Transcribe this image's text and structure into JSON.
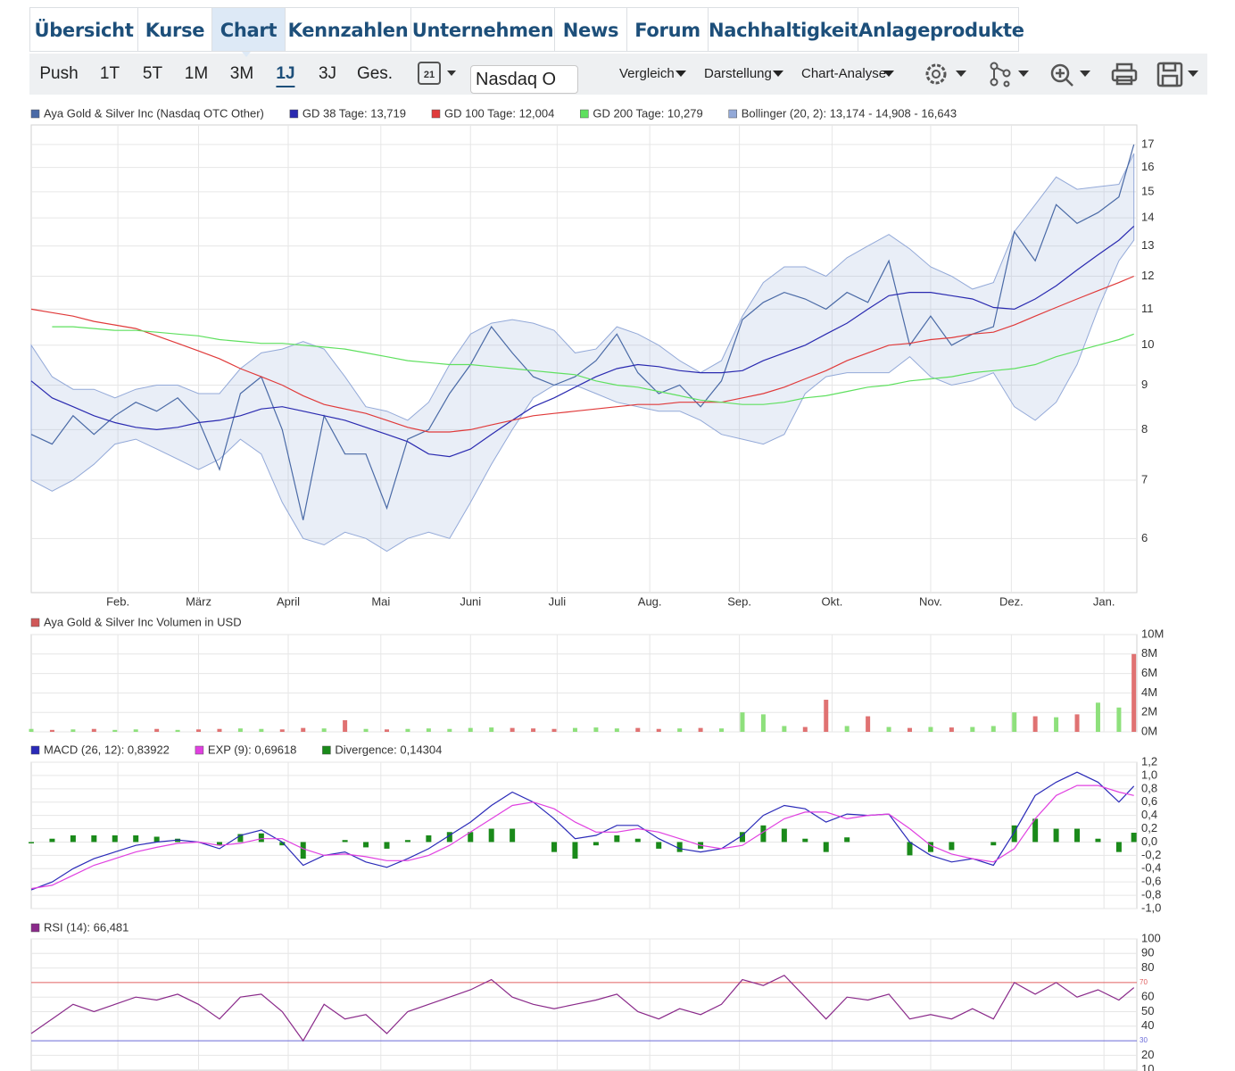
{
  "tabs": [
    "Übersicht",
    "Kurse",
    "Chart",
    "Kennzahlen",
    "Unternehmen",
    "News",
    "Forum",
    "Nachhaltigkeit",
    "Anlageprodukte"
  ],
  "toolbar": {
    "periods": [
      "Push",
      "1T",
      "5T",
      "1M",
      "3M",
      "1J",
      "3J",
      "Ges."
    ],
    "calendar": "21",
    "exchange": "Nasdaq O",
    "menus": [
      "Vergleich",
      "Darstellung",
      "Chart-Analyse"
    ]
  },
  "chart_data": [
    {
      "type": "line",
      "log_scale": true,
      "grid": true,
      "x": [
        0,
        7,
        14,
        21,
        28,
        35,
        42,
        49,
        56,
        63,
        70,
        77,
        84,
        91,
        98,
        105,
        112,
        119,
        126,
        133,
        140,
        147,
        154,
        161,
        168,
        175,
        182,
        189,
        196,
        203,
        210,
        217,
        224,
        231,
        238,
        245,
        252,
        259,
        266,
        273,
        280,
        287,
        294,
        301,
        308,
        315,
        322,
        329,
        336,
        343,
        350,
        357,
        364,
        369
      ],
      "xlim": [
        0,
        370
      ],
      "xticks": [
        {
          "value": 29,
          "label": "Feb."
        },
        {
          "value": 56,
          "label": "März"
        },
        {
          "value": 86,
          "label": "April"
        },
        {
          "value": 117,
          "label": "Mai"
        },
        {
          "value": 147,
          "label": "Juni"
        },
        {
          "value": 176,
          "label": "Juli"
        },
        {
          "value": 207,
          "label": "Aug."
        },
        {
          "value": 237,
          "label": "Sep."
        },
        {
          "value": 268,
          "label": "Okt."
        },
        {
          "value": 301,
          "label": "Nov."
        },
        {
          "value": 328,
          "label": "Dez."
        },
        {
          "value": 359,
          "label": "Jan."
        }
      ],
      "ylim": [
        5.2,
        17.9
      ],
      "yticks": [
        6,
        7,
        8,
        9,
        10,
        11,
        12,
        13,
        14,
        15,
        16,
        17
      ],
      "series": [
        {
          "name": "Aya Gold & Silver Inc (Nasdaq OTC Other)",
          "color": "#4a6aa6",
          "values": [
            7.9,
            7.7,
            8.3,
            7.9,
            8.3,
            8.6,
            8.4,
            8.7,
            8.2,
            7.2,
            8.8,
            9.2,
            8.0,
            6.3,
            8.3,
            7.5,
            7.5,
            6.5,
            7.8,
            8.0,
            8.8,
            9.5,
            10.5,
            9.8,
            9.2,
            9.0,
            9.2,
            9.6,
            10.3,
            9.3,
            8.8,
            9.0,
            8.5,
            9.1,
            10.7,
            11.2,
            11.5,
            11.3,
            11.0,
            11.5,
            11.2,
            12.5,
            10.0,
            10.8,
            10.0,
            10.3,
            10.5,
            13.5,
            12.5,
            14.5,
            13.8,
            14.2,
            14.8,
            17.0
          ]
        },
        {
          "name": "GD 38 Tage: 13,719",
          "color": "#2a2ab0",
          "values": [
            9.1,
            8.7,
            8.5,
            8.3,
            8.15,
            8.05,
            8.0,
            8.05,
            8.15,
            8.2,
            8.3,
            8.45,
            8.5,
            8.4,
            8.3,
            8.2,
            8.05,
            7.9,
            7.75,
            7.5,
            7.45,
            7.6,
            7.9,
            8.2,
            8.5,
            8.7,
            8.95,
            9.2,
            9.4,
            9.5,
            9.45,
            9.35,
            9.3,
            9.3,
            9.35,
            9.6,
            9.8,
            10.0,
            10.3,
            10.6,
            11.0,
            11.4,
            11.5,
            11.5,
            11.4,
            11.3,
            11.05,
            11.0,
            11.3,
            11.7,
            12.2,
            12.7,
            13.2,
            13.7
          ]
        },
        {
          "name": "GD 100 Tage: 12,004",
          "color": "#e03a3a",
          "values": [
            11.0,
            10.9,
            10.8,
            10.65,
            10.55,
            10.45,
            10.25,
            10.05,
            9.85,
            9.65,
            9.4,
            9.2,
            9.0,
            8.75,
            8.55,
            8.45,
            8.35,
            8.2,
            8.05,
            7.95,
            7.95,
            8.0,
            8.1,
            8.2,
            8.3,
            8.35,
            8.4,
            8.45,
            8.5,
            8.55,
            8.55,
            8.6,
            8.6,
            8.6,
            8.7,
            8.8,
            8.95,
            9.15,
            9.35,
            9.6,
            9.8,
            10.0,
            10.05,
            10.15,
            10.2,
            10.3,
            10.35,
            10.55,
            10.8,
            11.05,
            11.3,
            11.55,
            11.8,
            12.0
          ]
        },
        {
          "name": "GD 200 Tage: 10,279",
          "color": "#5fe05f",
          "values": [
            null,
            10.5,
            10.5,
            10.45,
            10.4,
            10.4,
            10.35,
            10.3,
            10.25,
            10.15,
            10.1,
            10.05,
            10.05,
            10.0,
            9.95,
            9.9,
            9.8,
            9.7,
            9.6,
            9.55,
            9.5,
            9.5,
            9.45,
            9.4,
            9.35,
            9.3,
            9.25,
            9.1,
            9.0,
            8.95,
            8.85,
            8.75,
            8.65,
            8.6,
            8.55,
            8.55,
            8.6,
            8.7,
            8.75,
            8.85,
            8.95,
            9.0,
            9.1,
            9.15,
            9.2,
            9.3,
            9.35,
            9.4,
            9.5,
            9.7,
            9.85,
            10.0,
            10.15,
            10.3
          ]
        },
        {
          "name": "Bollinger (20, 2): 13,174 - 14,908 - 16,643",
          "color": "#93a9d8",
          "kind": "band",
          "upper": [
            10.0,
            9.2,
            8.9,
            8.9,
            8.7,
            8.9,
            9.0,
            9.0,
            8.8,
            8.8,
            9.4,
            9.8,
            9.9,
            10.1,
            9.9,
            9.2,
            8.5,
            8.4,
            8.2,
            8.6,
            9.5,
            10.3,
            10.6,
            10.7,
            10.6,
            10.4,
            9.8,
            9.9,
            10.5,
            10.3,
            10.0,
            9.6,
            9.3,
            9.6,
            10.8,
            11.8,
            12.3,
            12.3,
            12.0,
            12.6,
            13.0,
            13.4,
            12.9,
            12.3,
            12.0,
            11.6,
            11.8,
            13.5,
            14.5,
            15.6,
            15.1,
            15.2,
            15.3,
            16.6
          ],
          "lower": [
            7.0,
            6.8,
            7.0,
            7.3,
            7.7,
            7.8,
            7.6,
            7.4,
            7.2,
            7.4,
            7.8,
            7.5,
            6.6,
            6.0,
            5.9,
            6.1,
            6.0,
            5.8,
            6.0,
            6.1,
            6.0,
            6.6,
            7.3,
            8.0,
            8.7,
            9.0,
            9.0,
            8.8,
            8.6,
            8.5,
            8.4,
            8.4,
            8.2,
            7.9,
            7.8,
            7.7,
            7.9,
            8.8,
            9.2,
            9.3,
            9.3,
            9.3,
            9.7,
            9.2,
            9.0,
            9.1,
            9.3,
            8.5,
            8.2,
            8.6,
            9.5,
            11.0,
            12.5,
            13.2
          ]
        }
      ]
    },
    {
      "type": "bar",
      "title": "Aya Gold & Silver Inc Volumen in USD",
      "legend_color": "#d05858",
      "grid": true,
      "ylim": [
        0,
        10000000
      ],
      "yticks": [
        {
          "value": 0,
          "label": "0M"
        },
        {
          "value": 2000000,
          "label": "2M"
        },
        {
          "value": 4000000,
          "label": "4M"
        },
        {
          "value": 6000000,
          "label": "6M"
        },
        {
          "value": 8000000,
          "label": "8M"
        },
        {
          "value": 10000000,
          "label": "10M"
        }
      ],
      "values": [
        300000,
        200000,
        250000,
        300000,
        200000,
        250000,
        300000,
        200000,
        250000,
        300000,
        350000,
        300000,
        250000,
        400000,
        350000,
        1200000,
        300000,
        250000,
        300000,
        350000,
        300000,
        400000,
        450000,
        400000,
        350000,
        300000,
        400000,
        450000,
        350000,
        400000,
        300000,
        350000,
        400000,
        350000,
        2000000,
        1800000,
        600000,
        500000,
        3300000,
        600000,
        1600000,
        500000,
        400000,
        500000,
        450000,
        500000,
        600000,
        2000000,
        1600000,
        1500000,
        1800000,
        3000000,
        2500000,
        8000000
      ],
      "colors": [
        "#8ee07c",
        "#e07272",
        "#8ee07c",
        "#e07272",
        "#8ee07c",
        "#8ee07c",
        "#e07272",
        "#8ee07c",
        "#e07272",
        "#e07272",
        "#8ee07c",
        "#8ee07c",
        "#e07272",
        "#e07272",
        "#8ee07c",
        "#e07272",
        "#8ee07c",
        "#e07272",
        "#8ee07c",
        "#8ee07c",
        "#8ee07c",
        "#8ee07c",
        "#8ee07c",
        "#e07272",
        "#e07272",
        "#e07272",
        "#8ee07c",
        "#8ee07c",
        "#8ee07c",
        "#e07272",
        "#e07272",
        "#8ee07c",
        "#e07272",
        "#8ee07c",
        "#8ee07c",
        "#8ee07c",
        "#8ee07c",
        "#e07272",
        "#e07272",
        "#8ee07c",
        "#e07272",
        "#8ee07c",
        "#e07272",
        "#8ee07c",
        "#e07272",
        "#8ee07c",
        "#8ee07c",
        "#8ee07c",
        "#e07272",
        "#8ee07c",
        "#e07272",
        "#8ee07c",
        "#8ee07c",
        "#e07272"
      ]
    },
    {
      "type": "line",
      "grid": true,
      "ylim": [
        -1.0,
        1.2
      ],
      "yticks": [
        {
          "value": 1.2,
          "label": "1,2"
        },
        {
          "value": 1.0,
          "label": "1,0"
        },
        {
          "value": 0.8,
          "label": "0,8"
        },
        {
          "value": 0.6,
          "label": "0,6"
        },
        {
          "value": 0.4,
          "label": "0,4"
        },
        {
          "value": 0.2,
          "label": "0,2"
        },
        {
          "value": 0,
          "label": "0,0"
        },
        {
          "value": -0.2,
          "label": "-0,2"
        },
        {
          "value": -0.4,
          "label": "-0,4"
        },
        {
          "value": -0.6,
          "label": "-0,6"
        },
        {
          "value": -0.8,
          "label": "-0,8"
        },
        {
          "value": -1.0,
          "label": "-1,0"
        }
      ],
      "series": [
        {
          "name": "MACD (26, 12): 0,83922",
          "color": "#2a2ab8",
          "values": [
            -0.72,
            -0.6,
            -0.4,
            -0.25,
            -0.15,
            -0.05,
            0.0,
            0.03,
            0.0,
            -0.1,
            0.1,
            0.18,
            0.0,
            -0.35,
            -0.2,
            -0.15,
            -0.3,
            -0.38,
            -0.25,
            -0.1,
            0.1,
            0.3,
            0.55,
            0.75,
            0.6,
            0.35,
            0.05,
            0.1,
            0.25,
            0.25,
            0.05,
            -0.1,
            -0.15,
            -0.1,
            0.1,
            0.4,
            0.55,
            0.5,
            0.3,
            0.42,
            0.4,
            0.42,
            0.0,
            -0.2,
            -0.3,
            -0.25,
            -0.35,
            0.15,
            0.7,
            0.9,
            1.05,
            0.9,
            0.6,
            0.84
          ]
        },
        {
          "name": "EXP (9): 0,69618",
          "color": "#e040e0",
          "values": [
            -0.7,
            -0.65,
            -0.5,
            -0.35,
            -0.25,
            -0.15,
            -0.08,
            -0.02,
            0.0,
            -0.05,
            -0.02,
            0.05,
            0.05,
            -0.1,
            -0.2,
            -0.18,
            -0.22,
            -0.28,
            -0.28,
            -0.2,
            -0.05,
            0.15,
            0.35,
            0.55,
            0.6,
            0.5,
            0.3,
            0.15,
            0.15,
            0.2,
            0.15,
            0.05,
            -0.05,
            -0.1,
            -0.05,
            0.15,
            0.35,
            0.45,
            0.45,
            0.35,
            0.4,
            0.42,
            0.2,
            -0.05,
            -0.18,
            -0.25,
            -0.3,
            -0.1,
            0.35,
            0.7,
            0.85,
            0.85,
            0.75,
            0.7
          ]
        },
        {
          "name": "Divergence: 0,14304",
          "color": "#1a8a1a",
          "kind": "bar",
          "values": [
            -0.02,
            0.05,
            0.1,
            0.1,
            0.1,
            0.1,
            0.08,
            0.05,
            0.0,
            -0.05,
            0.12,
            0.13,
            -0.05,
            -0.25,
            0.0,
            0.03,
            -0.08,
            -0.1,
            0.03,
            0.1,
            0.15,
            0.15,
            0.2,
            0.2,
            0.0,
            -0.15,
            -0.25,
            -0.05,
            0.1,
            0.05,
            -0.1,
            -0.15,
            -0.1,
            0.0,
            0.15,
            0.25,
            0.2,
            0.05,
            -0.15,
            0.07,
            0.0,
            0.0,
            -0.2,
            -0.15,
            -0.12,
            0.0,
            -0.05,
            0.25,
            0.35,
            0.2,
            0.2,
            0.05,
            -0.15,
            0.14
          ]
        }
      ]
    },
    {
      "type": "line",
      "grid": true,
      "ylim": [
        0,
        100
      ],
      "yticks": [
        10,
        20,
        40,
        50,
        60,
        80,
        90,
        100
      ],
      "hlines": [
        {
          "value": 70,
          "color": "#e06060"
        },
        {
          "value": 30,
          "color": "#6a6ad8"
        }
      ],
      "series": [
        {
          "name": "RSI (14): 66,481",
          "color": "#8a2a8a",
          "values": [
            35,
            45,
            55,
            50,
            55,
            60,
            58,
            62,
            55,
            45,
            60,
            62,
            50,
            30,
            55,
            45,
            48,
            35,
            50,
            55,
            60,
            65,
            72,
            60,
            55,
            52,
            55,
            58,
            62,
            50,
            45,
            52,
            48,
            55,
            72,
            68,
            75,
            60,
            45,
            60,
            58,
            62,
            45,
            48,
            45,
            52,
            45,
            70,
            62,
            70,
            60,
            65,
            58,
            66.481
          ]
        }
      ]
    }
  ]
}
